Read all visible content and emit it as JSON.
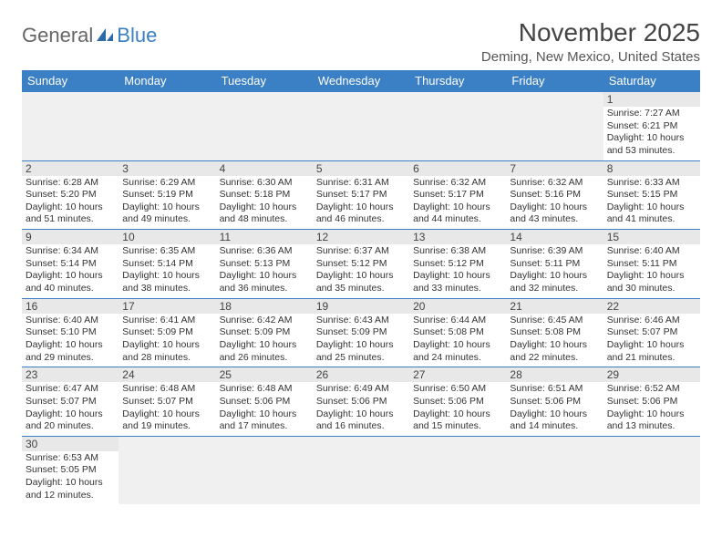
{
  "logo": {
    "part1": "General",
    "part2": "Blue"
  },
  "title": "November 2025",
  "location": "Deming, New Mexico, United States",
  "colors": {
    "header_bg": "#3b7fc4",
    "header_text": "#ffffff",
    "daynum_bg": "#e8e8e8",
    "rule": "#3b7fc4"
  },
  "day_headers": [
    "Sunday",
    "Monday",
    "Tuesday",
    "Wednesday",
    "Thursday",
    "Friday",
    "Saturday"
  ],
  "weeks": [
    [
      null,
      null,
      null,
      null,
      null,
      null,
      {
        "n": "1",
        "sr": "Sunrise: 7:27 AM",
        "ss": "Sunset: 6:21 PM",
        "d1": "Daylight: 10 hours",
        "d2": "and 53 minutes."
      }
    ],
    [
      {
        "n": "2",
        "sr": "Sunrise: 6:28 AM",
        "ss": "Sunset: 5:20 PM",
        "d1": "Daylight: 10 hours",
        "d2": "and 51 minutes."
      },
      {
        "n": "3",
        "sr": "Sunrise: 6:29 AM",
        "ss": "Sunset: 5:19 PM",
        "d1": "Daylight: 10 hours",
        "d2": "and 49 minutes."
      },
      {
        "n": "4",
        "sr": "Sunrise: 6:30 AM",
        "ss": "Sunset: 5:18 PM",
        "d1": "Daylight: 10 hours",
        "d2": "and 48 minutes."
      },
      {
        "n": "5",
        "sr": "Sunrise: 6:31 AM",
        "ss": "Sunset: 5:17 PM",
        "d1": "Daylight: 10 hours",
        "d2": "and 46 minutes."
      },
      {
        "n": "6",
        "sr": "Sunrise: 6:32 AM",
        "ss": "Sunset: 5:17 PM",
        "d1": "Daylight: 10 hours",
        "d2": "and 44 minutes."
      },
      {
        "n": "7",
        "sr": "Sunrise: 6:32 AM",
        "ss": "Sunset: 5:16 PM",
        "d1": "Daylight: 10 hours",
        "d2": "and 43 minutes."
      },
      {
        "n": "8",
        "sr": "Sunrise: 6:33 AM",
        "ss": "Sunset: 5:15 PM",
        "d1": "Daylight: 10 hours",
        "d2": "and 41 minutes."
      }
    ],
    [
      {
        "n": "9",
        "sr": "Sunrise: 6:34 AM",
        "ss": "Sunset: 5:14 PM",
        "d1": "Daylight: 10 hours",
        "d2": "and 40 minutes."
      },
      {
        "n": "10",
        "sr": "Sunrise: 6:35 AM",
        "ss": "Sunset: 5:14 PM",
        "d1": "Daylight: 10 hours",
        "d2": "and 38 minutes."
      },
      {
        "n": "11",
        "sr": "Sunrise: 6:36 AM",
        "ss": "Sunset: 5:13 PM",
        "d1": "Daylight: 10 hours",
        "d2": "and 36 minutes."
      },
      {
        "n": "12",
        "sr": "Sunrise: 6:37 AM",
        "ss": "Sunset: 5:12 PM",
        "d1": "Daylight: 10 hours",
        "d2": "and 35 minutes."
      },
      {
        "n": "13",
        "sr": "Sunrise: 6:38 AM",
        "ss": "Sunset: 5:12 PM",
        "d1": "Daylight: 10 hours",
        "d2": "and 33 minutes."
      },
      {
        "n": "14",
        "sr": "Sunrise: 6:39 AM",
        "ss": "Sunset: 5:11 PM",
        "d1": "Daylight: 10 hours",
        "d2": "and 32 minutes."
      },
      {
        "n": "15",
        "sr": "Sunrise: 6:40 AM",
        "ss": "Sunset: 5:11 PM",
        "d1": "Daylight: 10 hours",
        "d2": "and 30 minutes."
      }
    ],
    [
      {
        "n": "16",
        "sr": "Sunrise: 6:40 AM",
        "ss": "Sunset: 5:10 PM",
        "d1": "Daylight: 10 hours",
        "d2": "and 29 minutes."
      },
      {
        "n": "17",
        "sr": "Sunrise: 6:41 AM",
        "ss": "Sunset: 5:09 PM",
        "d1": "Daylight: 10 hours",
        "d2": "and 28 minutes."
      },
      {
        "n": "18",
        "sr": "Sunrise: 6:42 AM",
        "ss": "Sunset: 5:09 PM",
        "d1": "Daylight: 10 hours",
        "d2": "and 26 minutes."
      },
      {
        "n": "19",
        "sr": "Sunrise: 6:43 AM",
        "ss": "Sunset: 5:09 PM",
        "d1": "Daylight: 10 hours",
        "d2": "and 25 minutes."
      },
      {
        "n": "20",
        "sr": "Sunrise: 6:44 AM",
        "ss": "Sunset: 5:08 PM",
        "d1": "Daylight: 10 hours",
        "d2": "and 24 minutes."
      },
      {
        "n": "21",
        "sr": "Sunrise: 6:45 AM",
        "ss": "Sunset: 5:08 PM",
        "d1": "Daylight: 10 hours",
        "d2": "and 22 minutes."
      },
      {
        "n": "22",
        "sr": "Sunrise: 6:46 AM",
        "ss": "Sunset: 5:07 PM",
        "d1": "Daylight: 10 hours",
        "d2": "and 21 minutes."
      }
    ],
    [
      {
        "n": "23",
        "sr": "Sunrise: 6:47 AM",
        "ss": "Sunset: 5:07 PM",
        "d1": "Daylight: 10 hours",
        "d2": "and 20 minutes."
      },
      {
        "n": "24",
        "sr": "Sunrise: 6:48 AM",
        "ss": "Sunset: 5:07 PM",
        "d1": "Daylight: 10 hours",
        "d2": "and 19 minutes."
      },
      {
        "n": "25",
        "sr": "Sunrise: 6:48 AM",
        "ss": "Sunset: 5:06 PM",
        "d1": "Daylight: 10 hours",
        "d2": "and 17 minutes."
      },
      {
        "n": "26",
        "sr": "Sunrise: 6:49 AM",
        "ss": "Sunset: 5:06 PM",
        "d1": "Daylight: 10 hours",
        "d2": "and 16 minutes."
      },
      {
        "n": "27",
        "sr": "Sunrise: 6:50 AM",
        "ss": "Sunset: 5:06 PM",
        "d1": "Daylight: 10 hours",
        "d2": "and 15 minutes."
      },
      {
        "n": "28",
        "sr": "Sunrise: 6:51 AM",
        "ss": "Sunset: 5:06 PM",
        "d1": "Daylight: 10 hours",
        "d2": "and 14 minutes."
      },
      {
        "n": "29",
        "sr": "Sunrise: 6:52 AM",
        "ss": "Sunset: 5:06 PM",
        "d1": "Daylight: 10 hours",
        "d2": "and 13 minutes."
      }
    ],
    [
      {
        "n": "30",
        "sr": "Sunrise: 6:53 AM",
        "ss": "Sunset: 5:05 PM",
        "d1": "Daylight: 10 hours",
        "d2": "and 12 minutes."
      },
      null,
      null,
      null,
      null,
      null,
      null
    ]
  ]
}
